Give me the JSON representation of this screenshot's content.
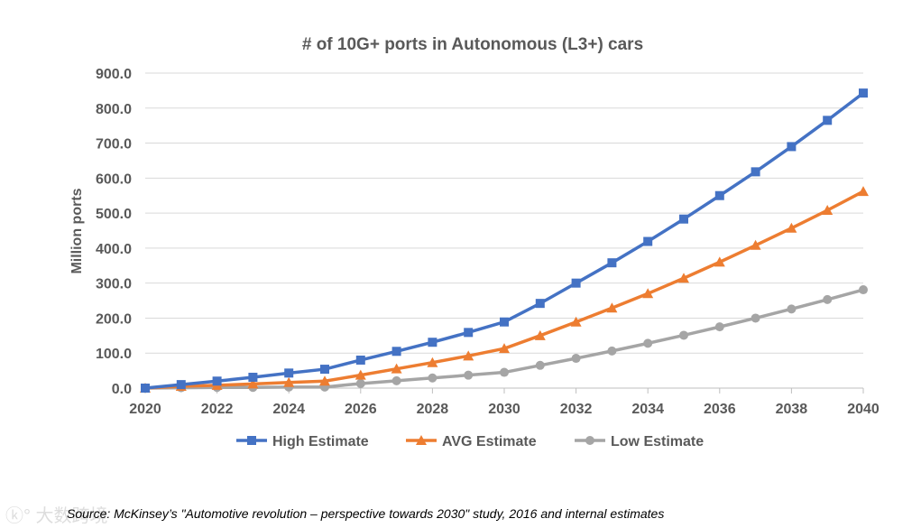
{
  "chart_data": {
    "type": "line",
    "title": "# of 10G+ ports in Autonomous (L3+) cars",
    "xlabel": "",
    "ylabel": "Million ports",
    "ylim": [
      0,
      900
    ],
    "xlim": [
      2020,
      2040
    ],
    "grid": true,
    "legend_position": "bottom",
    "yticks": [
      "0.0",
      "100.0",
      "200.0",
      "300.0",
      "400.0",
      "500.0",
      "600.0",
      "700.0",
      "800.0",
      "900.0"
    ],
    "xticks": [
      "2020",
      "2022",
      "2024",
      "2026",
      "2028",
      "2030",
      "2032",
      "2034",
      "2036",
      "2038",
      "2040"
    ],
    "x": [
      2020,
      2021,
      2022,
      2023,
      2024,
      2025,
      2026,
      2027,
      2028,
      2029,
      2030,
      2031,
      2032,
      2033,
      2034,
      2035,
      2036,
      2037,
      2038,
      2039,
      2040
    ],
    "series": [
      {
        "name": "High Estimate",
        "color": "#4472C4",
        "marker": "square",
        "values": [
          0,
          10,
          20,
          31,
          43,
          54,
          80,
          105,
          131,
          159,
          189,
          242,
          300,
          358,
          419,
          483,
          550,
          618,
          690,
          765,
          843
        ]
      },
      {
        "name": "AVG Estimate",
        "color": "#ED7D31",
        "marker": "triangle",
        "values": [
          0,
          5,
          8,
          12,
          16,
          20,
          37,
          55,
          73,
          92,
          113,
          150,
          189,
          229,
          270,
          314,
          360,
          408,
          457,
          508,
          562
        ]
      },
      {
        "name": "Low Estimate",
        "color": "#A5A5A5",
        "marker": "circle",
        "values": [
          0,
          1,
          2,
          2,
          3,
          3,
          13,
          21,
          29,
          37,
          45,
          65,
          85,
          106,
          128,
          151,
          175,
          200,
          226,
          253,
          281
        ]
      }
    ]
  },
  "source": "Source: McKinsey’s \"Automotive revolution – perspective towards 2030\" study, 2016 and internal estimates",
  "watermark": "大数跨境"
}
